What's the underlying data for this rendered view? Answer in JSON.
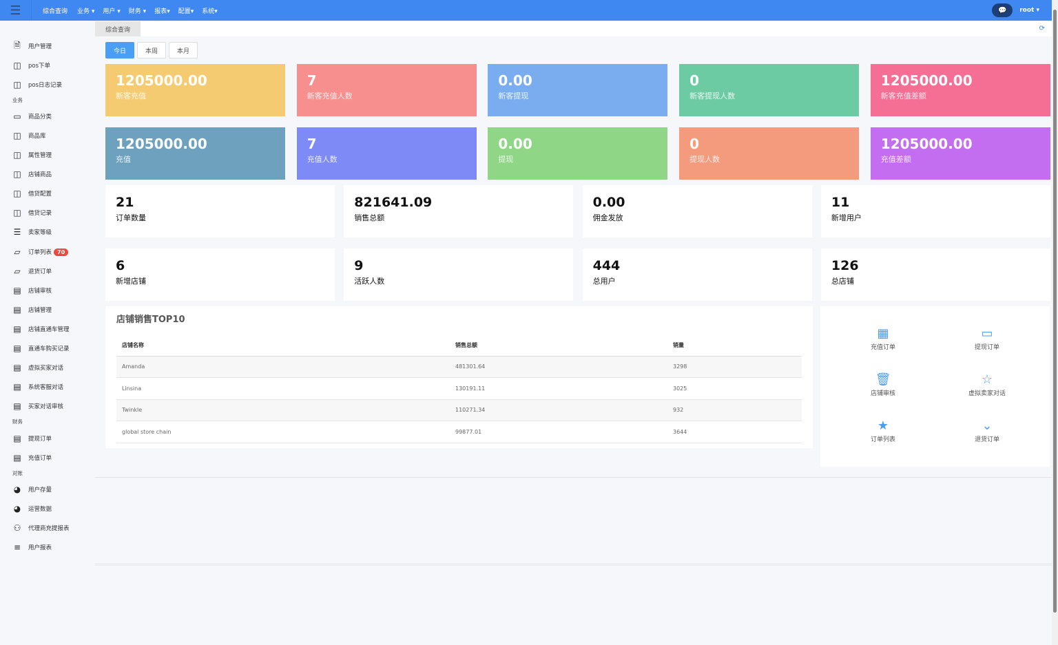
{
  "topbar": {
    "nav": [
      "综合查询",
      "业务 ▾",
      "用户 ▾",
      "财务 ▾",
      "报表▾",
      "配置▾",
      "系统▾"
    ],
    "user": "root"
  },
  "sidebar": {
    "items": [
      {
        "label": "用户管理",
        "icon": "file-icon"
      },
      {
        "label": "pos下单",
        "icon": "columns-icon"
      },
      {
        "label": "pos日志记录",
        "icon": "columns-icon"
      },
      {
        "section": "业务"
      },
      {
        "label": "商品分类",
        "icon": "laptop-icon"
      },
      {
        "label": "商品库",
        "icon": "columns-icon"
      },
      {
        "label": "属性管理",
        "icon": "columns-icon"
      },
      {
        "label": "店铺商品",
        "icon": "columns-icon"
      },
      {
        "label": "借贷配置",
        "icon": "columns-icon"
      },
      {
        "label": "借贷记录",
        "icon": "columns-icon"
      },
      {
        "label": "卖家等级",
        "icon": "indent-icon"
      },
      {
        "label": "订单列表",
        "icon": "tablet-icon",
        "badge": "70"
      },
      {
        "label": "退货订单",
        "icon": "tablet-icon"
      },
      {
        "label": "店铺审核",
        "icon": "credit-card-icon"
      },
      {
        "label": "店铺管理",
        "icon": "credit-card-icon"
      },
      {
        "label": "店铺直通车管理",
        "icon": "credit-card-icon"
      },
      {
        "label": "直通车购买记录",
        "icon": "credit-card-icon"
      },
      {
        "label": "虚拟买家对话",
        "icon": "credit-card-icon"
      },
      {
        "label": "系统客服对话",
        "icon": "credit-card-icon"
      },
      {
        "label": "买家对话审核",
        "icon": "credit-card-icon"
      },
      {
        "section": "财务"
      },
      {
        "label": "提现订单",
        "icon": "credit-card-icon"
      },
      {
        "label": "充值订单",
        "icon": "credit-card-icon"
      },
      {
        "section": "对账"
      },
      {
        "label": "用户存量",
        "icon": "pie-chart-icon"
      },
      {
        "label": "运营数据",
        "icon": "pie-chart-icon"
      },
      {
        "label": "代理商充提报表",
        "icon": "sitemap-icon"
      },
      {
        "label": "用户报表",
        "icon": "align-left-icon"
      }
    ]
  },
  "tab": "综合查询",
  "periods": [
    "今日",
    "本周",
    "本月"
  ],
  "color_cards": [
    {
      "value": "1205000.00",
      "label": "新客充值",
      "color": "#f5cb72"
    },
    {
      "value": "7",
      "label": "新客充值人数",
      "color": "#f68f8d"
    },
    {
      "value": "0.00",
      "label": "新客提现",
      "color": "#79adef"
    },
    {
      "value": "0",
      "label": "新客提现人数",
      "color": "#6ccba3"
    },
    {
      "value": "1205000.00",
      "label": "新客充值差额",
      "color": "#f56f94"
    },
    {
      "value": "1205000.00",
      "label": "充值",
      "color": "#6ea1bd"
    },
    {
      "value": "7",
      "label": "充值人数",
      "color": "#7e8bf6"
    },
    {
      "value": "0.00",
      "label": "提现",
      "color": "#8fd686"
    },
    {
      "value": "0",
      "label": "提现人数",
      "color": "#f59b7d"
    },
    {
      "value": "1205000.00",
      "label": "充值差额",
      "color": "#c36ef0"
    }
  ],
  "stat_cards": [
    {
      "value": "21",
      "label": "订单数量"
    },
    {
      "value": "821641.09",
      "label": "销售总额"
    },
    {
      "value": "0.00",
      "label": "佣金发放"
    },
    {
      "value": "11",
      "label": "新增用户"
    },
    {
      "value": "6",
      "label": "新增店铺"
    },
    {
      "value": "9",
      "label": "活跃人数"
    },
    {
      "value": "444",
      "label": "总用户"
    },
    {
      "value": "126",
      "label": "总店铺"
    }
  ],
  "top10": {
    "title": "店铺销售TOP10",
    "headers": [
      "店铺名称",
      "销售总额",
      "销量"
    ],
    "rows": [
      [
        "Amanda",
        "481301.64",
        "3298"
      ],
      [
        "Linsina",
        "130191.11",
        "3025"
      ],
      [
        "Twinkle",
        "110271.34",
        "932"
      ],
      [
        "global store chain",
        "99877.01",
        "3644"
      ]
    ]
  },
  "quick": [
    {
      "label": "充值订单",
      "icon": "qrcode-icon",
      "glyph": "▦"
    },
    {
      "label": "提现订单",
      "icon": "credit-card-icon",
      "glyph": "▭"
    },
    {
      "label": "店铺审核",
      "icon": "trash-icon",
      "glyph": "🗑"
    },
    {
      "label": "虚拟卖家对话",
      "icon": "star-outline-icon",
      "glyph": "☆"
    },
    {
      "label": "订单列表",
      "icon": "star-icon",
      "glyph": "★"
    },
    {
      "label": "退货订单",
      "icon": "chevron-down-icon",
      "glyph": "⌄"
    }
  ]
}
